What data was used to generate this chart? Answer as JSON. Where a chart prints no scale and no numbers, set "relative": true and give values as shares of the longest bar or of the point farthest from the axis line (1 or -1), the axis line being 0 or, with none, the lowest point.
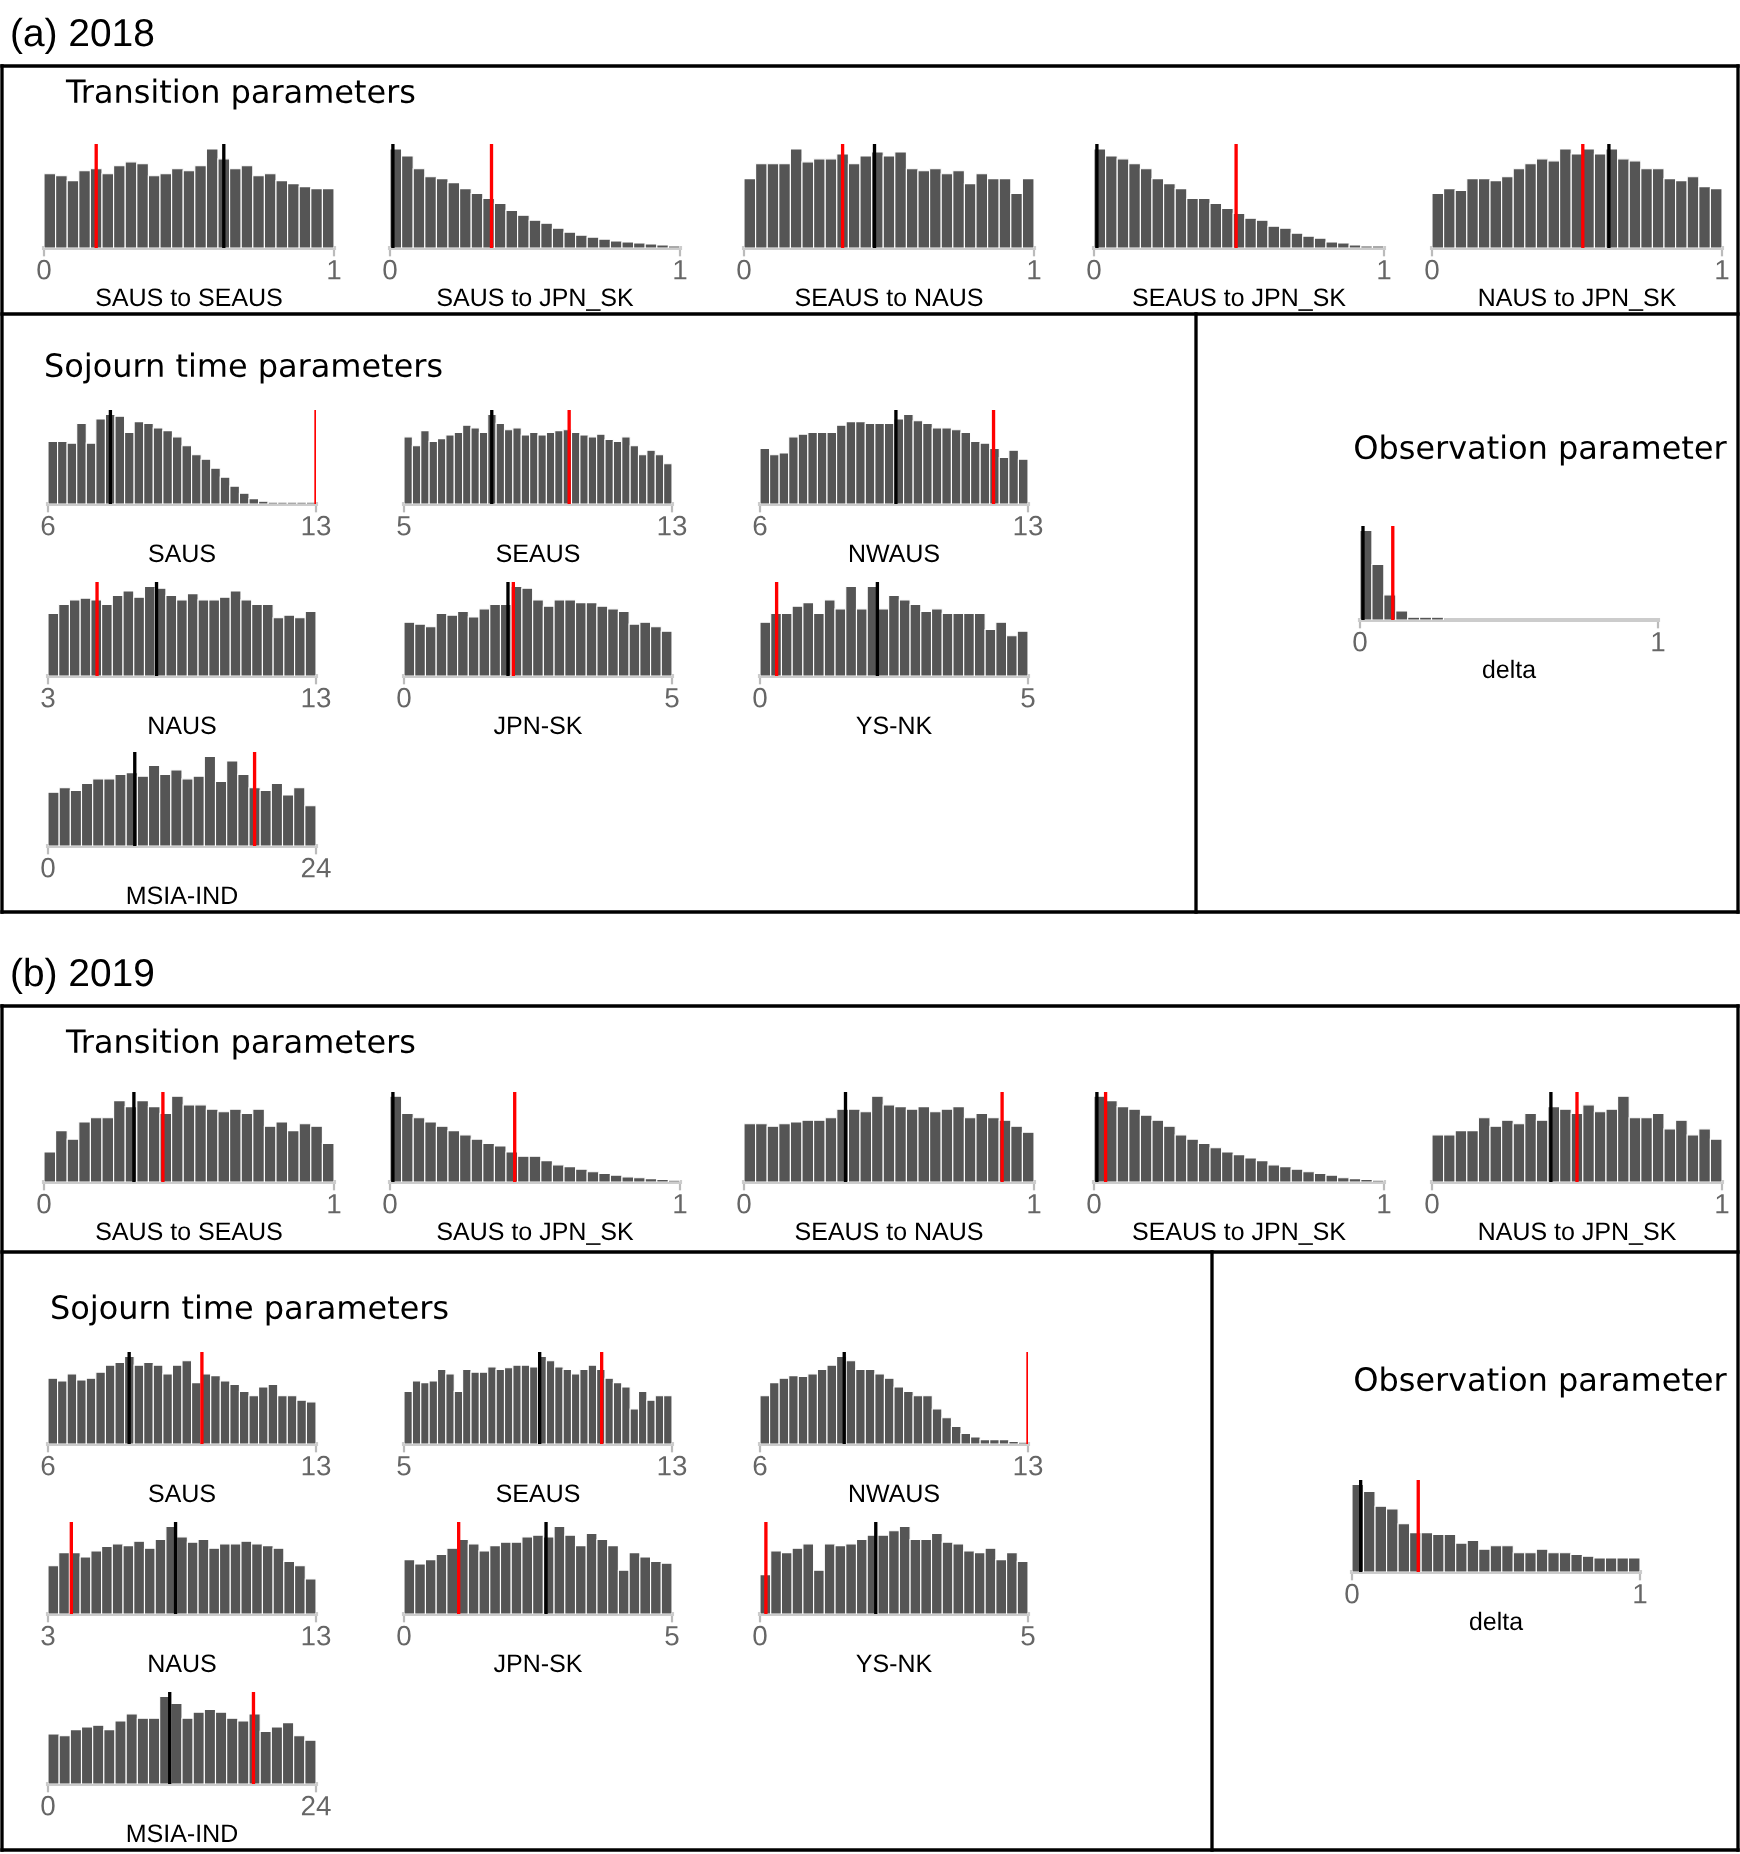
{
  "chart_data": [
    {
      "type": "bar",
      "relative": true,
      "title": "(a) 2018",
      "subtitle": "Transition parameters",
      "xlabel": "SAUS to SEAUS",
      "color": "#555555",
      "xlim": [
        0,
        1
      ],
      "xticks": [
        0,
        1
      ],
      "x": [
        0.02,
        0.06,
        0.1,
        0.14,
        0.18,
        0.22,
        0.26,
        0.3,
        0.34,
        0.38,
        0.42,
        0.46,
        0.5,
        0.54,
        0.58,
        0.62,
        0.66,
        0.7,
        0.74,
        0.78,
        0.82,
        0.86,
        0.9,
        0.94,
        0.98
      ],
      "values": [
        0.75,
        0.73,
        0.68,
        0.78,
        0.8,
        0.75,
        0.83,
        0.87,
        0.85,
        0.73,
        0.75,
        0.8,
        0.78,
        0.83,
        1,
        0.9,
        0.8,
        0.83,
        0.73,
        0.75,
        0.68,
        0.65,
        0.62,
        0.6,
        0.6
      ],
      "ref_lines": [
        {
          "axis": "x",
          "value": 0.18,
          "color": "#ff0000"
        },
        {
          "axis": "x",
          "value": 0.62,
          "color": "#000000"
        }
      ]
    },
    {
      "type": "bar",
      "relative": true,
      "xlabel": "SAUS to JPN_SK",
      "color": "#555555",
      "xlim": [
        0,
        1
      ],
      "xticks": [
        0,
        1
      ],
      "x": [
        0.02,
        0.06,
        0.1,
        0.14,
        0.18,
        0.22,
        0.26,
        0.3,
        0.34,
        0.38,
        0.42,
        0.46,
        0.5,
        0.54,
        0.58,
        0.62,
        0.66,
        0.7,
        0.74,
        0.78,
        0.82,
        0.86,
        0.9,
        0.94,
        0.98
      ],
      "values": [
        1,
        0.93,
        0.8,
        0.72,
        0.7,
        0.66,
        0.6,
        0.55,
        0.5,
        0.45,
        0.38,
        0.33,
        0.28,
        0.25,
        0.2,
        0.16,
        0.13,
        0.11,
        0.09,
        0.07,
        0.06,
        0.05,
        0.04,
        0.03,
        0.02
      ],
      "ref_lines": [
        {
          "axis": "x",
          "value": 0.01,
          "color": "#000000"
        },
        {
          "axis": "x",
          "value": 0.35,
          "color": "#ff0000"
        }
      ]
    },
    {
      "type": "bar",
      "relative": true,
      "xlabel": "SEAUS to NAUS",
      "color": "#555555",
      "xlim": [
        0,
        1
      ],
      "xticks": [
        0,
        1
      ],
      "x": [
        0.02,
        0.06,
        0.1,
        0.14,
        0.18,
        0.22,
        0.26,
        0.3,
        0.34,
        0.38,
        0.42,
        0.46,
        0.5,
        0.54,
        0.58,
        0.62,
        0.66,
        0.7,
        0.74,
        0.78,
        0.82,
        0.86,
        0.9,
        0.94,
        0.98
      ],
      "values": [
        0.7,
        0.85,
        0.85,
        0.85,
        1,
        0.87,
        0.9,
        0.9,
        0.95,
        0.85,
        0.93,
        0.97,
        0.93,
        0.97,
        0.8,
        0.78,
        0.8,
        0.75,
        0.78,
        0.65,
        0.75,
        0.7,
        0.7,
        0.55,
        0.7
      ],
      "ref_lines": [
        {
          "axis": "x",
          "value": 0.34,
          "color": "#ff0000"
        },
        {
          "axis": "x",
          "value": 0.45,
          "color": "#000000"
        }
      ]
    },
    {
      "type": "bar",
      "relative": true,
      "xlabel": "SEAUS to JPN_SK",
      "color": "#555555",
      "xlim": [
        0,
        1
      ],
      "xticks": [
        0,
        1
      ],
      "x": [
        0.02,
        0.06,
        0.1,
        0.14,
        0.18,
        0.22,
        0.26,
        0.3,
        0.34,
        0.38,
        0.42,
        0.46,
        0.5,
        0.54,
        0.58,
        0.62,
        0.66,
        0.7,
        0.74,
        0.78,
        0.82,
        0.86,
        0.9,
        0.94,
        0.98
      ],
      "values": [
        1,
        0.93,
        0.9,
        0.85,
        0.8,
        0.7,
        0.65,
        0.6,
        0.5,
        0.5,
        0.45,
        0.4,
        0.35,
        0.3,
        0.28,
        0.22,
        0.2,
        0.15,
        0.12,
        0.1,
        0.06,
        0.05,
        0.03,
        0.02,
        0.02
      ],
      "ref_lines": [
        {
          "axis": "x",
          "value": 0.01,
          "color": "#000000"
        },
        {
          "axis": "x",
          "value": 0.49,
          "color": "#ff0000"
        }
      ]
    },
    {
      "type": "bar",
      "relative": true,
      "xlabel": "NAUS to JPN_SK",
      "color": "#555555",
      "xlim": [
        0,
        1
      ],
      "xticks": [
        0,
        1
      ],
      "x": [
        0.02,
        0.06,
        0.1,
        0.14,
        0.18,
        0.22,
        0.26,
        0.3,
        0.34,
        0.38,
        0.42,
        0.46,
        0.5,
        0.54,
        0.58,
        0.62,
        0.66,
        0.7,
        0.74,
        0.78,
        0.82,
        0.86,
        0.9,
        0.94,
        0.98
      ],
      "values": [
        0.55,
        0.6,
        0.58,
        0.7,
        0.7,
        0.68,
        0.72,
        0.8,
        0.85,
        0.9,
        0.88,
        1,
        0.95,
        1,
        0.95,
        1,
        0.9,
        0.88,
        0.8,
        0.8,
        0.7,
        0.68,
        0.72,
        0.62,
        0.6
      ],
      "ref_lines": [
        {
          "axis": "x",
          "value": 0.52,
          "color": "#ff0000"
        },
        {
          "axis": "x",
          "value": 0.61,
          "color": "#000000"
        }
      ]
    },
    {
      "type": "bar",
      "relative": true,
      "subtitle": "Sojourn time parameters",
      "xlabel": "SAUS",
      "color": "#555555",
      "xlim": [
        6,
        13
      ],
      "xticks": [
        6,
        13
      ],
      "x": [
        6.125,
        6.375,
        6.625,
        6.875,
        7.125,
        7.375,
        7.625,
        7.875,
        8.125,
        8.375,
        8.625,
        8.875,
        9.125,
        9.375,
        9.625,
        9.875,
        10.125,
        10.375,
        10.625,
        10.875,
        11.125,
        11.375,
        11.625,
        11.875,
        12.125,
        12.375,
        12.625,
        12.875
      ],
      "values": [
        0.7,
        0.7,
        0.68,
        0.9,
        0.68,
        0.95,
        1,
        0.98,
        0.8,
        0.92,
        0.9,
        0.85,
        0.82,
        0.75,
        0.65,
        0.55,
        0.5,
        0.4,
        0.3,
        0.2,
        0.12,
        0.06,
        0.03,
        0.02,
        0.02,
        0.02,
        0.02,
        0.02
      ],
      "ref_lines": [
        {
          "axis": "x",
          "value": 7.63,
          "color": "#000000"
        },
        {
          "axis": "x",
          "value": 13,
          "color": "#ff0000"
        }
      ]
    },
    {
      "type": "bar",
      "relative": true,
      "xlabel": "SEAUS",
      "color": "#555555",
      "xlim": [
        5,
        13
      ],
      "xticks": [
        5,
        13
      ],
      "x": [
        5.125,
        5.375,
        5.625,
        5.875,
        6.125,
        6.375,
        6.625,
        6.875,
        7.125,
        7.375,
        7.625,
        7.875,
        8.125,
        8.375,
        8.625,
        8.875,
        9.125,
        9.375,
        9.625,
        9.875,
        10.125,
        10.375,
        10.625,
        10.875,
        11.125,
        11.375,
        11.625,
        11.875,
        12.125,
        12.375,
        12.625,
        12.875
      ],
      "values": [
        0.75,
        0.65,
        0.82,
        0.7,
        0.73,
        0.77,
        0.8,
        0.88,
        0.85,
        0.8,
        1,
        0.9,
        0.83,
        0.85,
        0.77,
        0.8,
        0.77,
        0.8,
        0.82,
        0.83,
        0.8,
        0.77,
        0.75,
        0.78,
        0.72,
        0.7,
        0.75,
        0.65,
        0.55,
        0.6,
        0.55,
        0.45
      ],
      "ref_lines": [
        {
          "axis": "x",
          "value": 7.62,
          "color": "#000000"
        },
        {
          "axis": "x",
          "value": 9.93,
          "color": "#ff0000"
        }
      ]
    },
    {
      "type": "bar",
      "relative": true,
      "xlabel": "NWAUS",
      "color": "#555555",
      "xlim": [
        6,
        13
      ],
      "xticks": [
        6,
        13
      ],
      "x": [
        6.125,
        6.375,
        6.625,
        6.875,
        7.125,
        7.375,
        7.625,
        7.875,
        8.125,
        8.375,
        8.625,
        8.875,
        9.125,
        9.375,
        9.625,
        9.875,
        10.125,
        10.375,
        10.625,
        10.875,
        11.125,
        11.375,
        11.625,
        11.875,
        12.125,
        12.375,
        12.625,
        12.875
      ],
      "values": [
        0.62,
        0.55,
        0.57,
        0.75,
        0.78,
        0.8,
        0.8,
        0.8,
        0.88,
        0.92,
        0.92,
        0.9,
        0.9,
        0.9,
        0.95,
        1,
        0.93,
        0.9,
        0.85,
        0.85,
        0.83,
        0.8,
        0.7,
        0.68,
        0.62,
        0.52,
        0.6,
        0.5
      ],
      "ref_lines": [
        {
          "axis": "x",
          "value": 9.55,
          "color": "#000000"
        },
        {
          "axis": "x",
          "value": 12.1,
          "color": "#ff0000"
        }
      ]
    },
    {
      "type": "bar",
      "relative": true,
      "xlabel": "NAUS",
      "color": "#555555",
      "xlim": [
        3,
        13
      ],
      "xticks": [
        3,
        13
      ],
      "x": [
        3.2,
        3.6,
        4,
        4.4,
        4.8,
        5.2,
        5.6,
        6,
        6.4,
        6.8,
        7.2,
        7.6,
        8,
        8.4,
        8.8,
        9.2,
        9.6,
        10,
        10.4,
        10.8,
        11.2,
        11.6,
        12,
        12.4,
        12.8
      ],
      "values": [
        0.7,
        0.8,
        0.85,
        0.87,
        0.85,
        0.8,
        0.9,
        0.95,
        0.88,
        1,
        0.98,
        0.9,
        0.85,
        0.92,
        0.85,
        0.85,
        0.88,
        0.95,
        0.85,
        0.8,
        0.8,
        0.65,
        0.68,
        0.65,
        0.72
      ],
      "ref_lines": [
        {
          "axis": "x",
          "value": 4.83,
          "color": "#ff0000"
        },
        {
          "axis": "x",
          "value": 7.05,
          "color": "#000000"
        }
      ]
    },
    {
      "type": "bar",
      "relative": true,
      "xlabel": "JPN-SK",
      "color": "#555555",
      "xlim": [
        0,
        5
      ],
      "xticks": [
        0,
        5
      ],
      "x": [
        0.1,
        0.3,
        0.5,
        0.7,
        0.9,
        1.1,
        1.3,
        1.5,
        1.7,
        1.9,
        2.1,
        2.3,
        2.5,
        2.7,
        2.9,
        3.1,
        3.3,
        3.5,
        3.7,
        3.9,
        4.1,
        4.3,
        4.5,
        4.7,
        4.9
      ],
      "values": [
        0.6,
        0.58,
        0.55,
        0.7,
        0.68,
        0.72,
        0.66,
        0.75,
        0.8,
        0.8,
        1,
        0.98,
        0.85,
        0.78,
        0.85,
        0.85,
        0.82,
        0.82,
        0.78,
        0.75,
        0.72,
        0.58,
        0.6,
        0.55,
        0.5
      ],
      "ref_lines": [
        {
          "axis": "x",
          "value": 1.94,
          "color": "#000000"
        },
        {
          "axis": "x",
          "value": 2.04,
          "color": "#ff0000"
        }
      ]
    },
    {
      "type": "bar",
      "relative": true,
      "xlabel": "YS-NK",
      "color": "#555555",
      "xlim": [
        0,
        5
      ],
      "xticks": [
        0,
        5
      ],
      "x": [
        0.1,
        0.3,
        0.5,
        0.7,
        0.9,
        1.1,
        1.3,
        1.5,
        1.7,
        1.9,
        2.1,
        2.3,
        2.5,
        2.7,
        2.9,
        3.1,
        3.3,
        3.5,
        3.7,
        3.9,
        4.1,
        4.3,
        4.5,
        4.7,
        4.9
      ],
      "values": [
        0.6,
        0.7,
        0.7,
        0.78,
        0.82,
        0.7,
        0.85,
        0.75,
        1,
        0.75,
        1,
        0.75,
        0.9,
        0.85,
        0.8,
        0.72,
        0.75,
        0.7,
        0.7,
        0.7,
        0.7,
        0.52,
        0.6,
        0.45,
        0.5
      ],
      "ref_lines": [
        {
          "axis": "x",
          "value": 0.31,
          "color": "#ff0000"
        },
        {
          "axis": "x",
          "value": 2.19,
          "color": "#000000"
        }
      ]
    },
    {
      "type": "bar",
      "relative": true,
      "xlabel": "MSIA-IND",
      "color": "#555555",
      "xlim": [
        0,
        24
      ],
      "xticks": [
        0,
        24
      ],
      "x": [
        0.5,
        1.5,
        2.5,
        3.5,
        4.5,
        5.5,
        6.5,
        7.5,
        8.5,
        9.5,
        10.5,
        11.5,
        12.5,
        13.5,
        14.5,
        15.5,
        16.5,
        17.5,
        18.5,
        19.5,
        20.5,
        21.5,
        22.5,
        23.5
      ],
      "values": [
        0.6,
        0.65,
        0.62,
        0.7,
        0.75,
        0.75,
        0.8,
        0.82,
        0.78,
        0.9,
        0.8,
        0.85,
        0.75,
        0.78,
        1,
        0.72,
        0.95,
        0.8,
        0.65,
        0.62,
        0.7,
        0.57,
        0.65,
        0.45
      ],
      "ref_lines": [
        {
          "axis": "x",
          "value": 7.77,
          "color": "#000000"
        },
        {
          "axis": "x",
          "value": 18.5,
          "color": "#ff0000"
        }
      ]
    },
    {
      "type": "bar",
      "relative": true,
      "subtitle": "Observation parameter",
      "xlabel": "delta",
      "color": "#555555",
      "xlim": [
        0,
        1
      ],
      "xticks": [
        0,
        1
      ],
      "x": [
        0.02,
        0.06,
        0.1,
        0.14,
        0.18,
        0.22,
        0.26
      ],
      "values": [
        1,
        0.62,
        0.28,
        0.1,
        0.03,
        0.03,
        0.03
      ],
      "ref_lines": [
        {
          "axis": "x",
          "value": 0.01,
          "color": "#000000"
        },
        {
          "axis": "x",
          "value": 0.11,
          "color": "#ff0000"
        }
      ]
    },
    {
      "type": "bar",
      "relative": true,
      "title": "(b) 2019",
      "subtitle": "Transition parameters",
      "xlabel": "SAUS to SEAUS",
      "color": "#555555",
      "xlim": [
        0,
        1
      ],
      "xticks": [
        0,
        1
      ],
      "x": [
        0.02,
        0.06,
        0.1,
        0.14,
        0.18,
        0.22,
        0.26,
        0.3,
        0.34,
        0.38,
        0.42,
        0.46,
        0.5,
        0.54,
        0.58,
        0.62,
        0.66,
        0.7,
        0.74,
        0.78,
        0.82,
        0.86,
        0.9,
        0.94,
        0.98
      ],
      "values": [
        0.35,
        0.6,
        0.5,
        0.7,
        0.75,
        0.75,
        0.95,
        0.88,
        0.95,
        0.88,
        0.8,
        1,
        0.9,
        0.9,
        0.85,
        0.82,
        0.85,
        0.8,
        0.85,
        0.65,
        0.7,
        0.6,
        0.68,
        0.65,
        0.45
      ],
      "ref_lines": [
        {
          "axis": "x",
          "value": 0.31,
          "color": "#000000"
        },
        {
          "axis": "x",
          "value": 0.41,
          "color": "#ff0000"
        }
      ]
    },
    {
      "type": "bar",
      "relative": true,
      "xlabel": "SAUS to JPN_SK",
      "color": "#555555",
      "xlim": [
        0,
        1
      ],
      "xticks": [
        0,
        1
      ],
      "x": [
        0.02,
        0.06,
        0.1,
        0.14,
        0.18,
        0.22,
        0.26,
        0.3,
        0.34,
        0.38,
        0.42,
        0.46,
        0.5,
        0.54,
        0.58,
        0.62,
        0.66,
        0.7,
        0.74,
        0.78,
        0.82,
        0.86,
        0.9,
        0.94,
        0.98
      ],
      "values": [
        1,
        0.8,
        0.75,
        0.7,
        0.65,
        0.6,
        0.55,
        0.5,
        0.45,
        0.42,
        0.35,
        0.3,
        0.3,
        0.25,
        0.2,
        0.18,
        0.15,
        0.12,
        0.1,
        0.08,
        0.06,
        0.05,
        0.04,
        0.03,
        0.02
      ],
      "ref_lines": [
        {
          "axis": "x",
          "value": 0.01,
          "color": "#000000"
        },
        {
          "axis": "x",
          "value": 0.43,
          "color": "#ff0000"
        }
      ]
    },
    {
      "type": "bar",
      "relative": true,
      "xlabel": "SEAUS to NAUS",
      "color": "#555555",
      "xlim": [
        0,
        1
      ],
      "xticks": [
        0,
        1
      ],
      "x": [
        0.02,
        0.06,
        0.1,
        0.14,
        0.18,
        0.22,
        0.26,
        0.3,
        0.34,
        0.38,
        0.42,
        0.46,
        0.5,
        0.54,
        0.58,
        0.62,
        0.66,
        0.7,
        0.74,
        0.78,
        0.82,
        0.86,
        0.9,
        0.94,
        0.98
      ],
      "values": [
        0.68,
        0.68,
        0.65,
        0.68,
        0.7,
        0.72,
        0.72,
        0.75,
        0.85,
        0.85,
        0.82,
        1,
        0.9,
        0.88,
        0.85,
        0.88,
        0.82,
        0.85,
        0.88,
        0.75,
        0.8,
        0.75,
        0.72,
        0.65,
        0.58
      ],
      "ref_lines": [
        {
          "axis": "x",
          "value": 0.35,
          "color": "#000000"
        },
        {
          "axis": "x",
          "value": 0.89,
          "color": "#ff0000"
        }
      ]
    },
    {
      "type": "bar",
      "relative": true,
      "xlabel": "SEAUS to JPN_SK",
      "color": "#555555",
      "xlim": [
        0,
        1
      ],
      "xticks": [
        0,
        1
      ],
      "x": [
        0.02,
        0.06,
        0.1,
        0.14,
        0.18,
        0.22,
        0.26,
        0.3,
        0.34,
        0.38,
        0.42,
        0.46,
        0.5,
        0.54,
        0.58,
        0.62,
        0.66,
        0.7,
        0.74,
        0.78,
        0.82,
        0.86,
        0.9,
        0.94,
        0.98
      ],
      "values": [
        1,
        0.95,
        0.88,
        0.85,
        0.78,
        0.72,
        0.65,
        0.55,
        0.5,
        0.45,
        0.4,
        0.35,
        0.32,
        0.28,
        0.25,
        0.2,
        0.18,
        0.15,
        0.12,
        0.1,
        0.08,
        0.05,
        0.04,
        0.03,
        0.02
      ],
      "ref_lines": [
        {
          "axis": "x",
          "value": 0.01,
          "color": "#000000"
        },
        {
          "axis": "x",
          "value": 0.04,
          "color": "#ff0000"
        }
      ]
    },
    {
      "type": "bar",
      "relative": true,
      "xlabel": "NAUS to JPN_SK",
      "color": "#555555",
      "xlim": [
        0,
        1
      ],
      "xticks": [
        0,
        1
      ],
      "x": [
        0.02,
        0.06,
        0.1,
        0.14,
        0.18,
        0.22,
        0.26,
        0.3,
        0.34,
        0.38,
        0.42,
        0.46,
        0.5,
        0.54,
        0.58,
        0.62,
        0.66,
        0.7,
        0.74,
        0.78,
        0.82,
        0.86,
        0.9,
        0.94,
        0.98
      ],
      "values": [
        0.55,
        0.55,
        0.6,
        0.6,
        0.75,
        0.65,
        0.72,
        0.68,
        0.8,
        0.72,
        0.88,
        0.85,
        0.8,
        0.9,
        0.82,
        0.85,
        1,
        0.75,
        0.75,
        0.8,
        0.62,
        0.72,
        0.55,
        0.62,
        0.5
      ],
      "ref_lines": [
        {
          "axis": "x",
          "value": 0.41,
          "color": "#000000"
        },
        {
          "axis": "x",
          "value": 0.5,
          "color": "#ff0000"
        }
      ]
    },
    {
      "type": "bar",
      "relative": true,
      "subtitle": "Sojourn time parameters",
      "xlabel": "SAUS",
      "color": "#555555",
      "xlim": [
        6,
        13
      ],
      "xticks": [
        6,
        13
      ],
      "x": [
        6.125,
        6.375,
        6.625,
        6.875,
        7.125,
        7.375,
        7.625,
        7.875,
        8.125,
        8.375,
        8.625,
        8.875,
        9.125,
        9.375,
        9.625,
        9.875,
        10.125,
        10.375,
        10.625,
        10.875,
        11.125,
        11.375,
        11.625,
        11.875,
        12.125,
        12.375,
        12.625,
        12.875
      ],
      "values": [
        0.75,
        0.72,
        0.8,
        0.73,
        0.75,
        0.82,
        0.9,
        0.93,
        1,
        0.9,
        0.93,
        0.9,
        0.8,
        0.9,
        0.95,
        0.7,
        0.8,
        0.78,
        0.72,
        0.68,
        0.6,
        0.55,
        0.65,
        0.68,
        0.55,
        0.55,
        0.5,
        0.48
      ],
      "ref_lines": [
        {
          "axis": "x",
          "value": 8.12,
          "color": "#000000"
        },
        {
          "axis": "x",
          "value": 10.02,
          "color": "#ff0000"
        }
      ]
    },
    {
      "type": "bar",
      "relative": true,
      "xlabel": "SEAUS",
      "color": "#555555",
      "xlim": [
        5,
        13
      ],
      "xticks": [
        5,
        13
      ],
      "x": [
        5.125,
        5.375,
        5.625,
        5.875,
        6.125,
        6.375,
        6.625,
        6.875,
        7.125,
        7.375,
        7.625,
        7.875,
        8.125,
        8.375,
        8.625,
        8.875,
        9.125,
        9.375,
        9.625,
        9.875,
        10.125,
        10.375,
        10.625,
        10.875,
        11.125,
        11.375,
        11.625,
        11.875,
        12.125,
        12.375,
        12.625,
        12.875
      ],
      "values": [
        0.6,
        0.72,
        0.7,
        0.72,
        0.85,
        0.8,
        0.6,
        0.85,
        0.82,
        0.82,
        0.88,
        0.85,
        0.87,
        0.9,
        0.9,
        0.88,
        1,
        0.95,
        0.88,
        0.85,
        0.8,
        0.85,
        0.9,
        0.85,
        0.75,
        0.7,
        0.65,
        0.4,
        0.6,
        0.5,
        0.55,
        0.55
      ],
      "ref_lines": [
        {
          "axis": "x",
          "value": 9.05,
          "color": "#000000"
        },
        {
          "axis": "x",
          "value": 10.9,
          "color": "#ff0000"
        }
      ]
    },
    {
      "type": "bar",
      "relative": true,
      "xlabel": "NWAUS",
      "color": "#555555",
      "xlim": [
        6,
        13
      ],
      "xticks": [
        6,
        13
      ],
      "x": [
        6.125,
        6.375,
        6.625,
        6.875,
        7.125,
        7.375,
        7.625,
        7.875,
        8.125,
        8.375,
        8.625,
        8.875,
        9.125,
        9.375,
        9.625,
        9.875,
        10.125,
        10.375,
        10.625,
        10.875,
        11.125,
        11.375,
        11.625,
        11.875,
        12.125,
        12.375,
        12.625,
        12.875
      ],
      "values": [
        0.55,
        0.7,
        0.75,
        0.78,
        0.77,
        0.8,
        0.85,
        0.9,
        1,
        0.95,
        0.85,
        0.85,
        0.8,
        0.75,
        0.65,
        0.6,
        0.55,
        0.55,
        0.4,
        0.3,
        0.2,
        0.12,
        0.08,
        0.05,
        0.05,
        0.05,
        0.03,
        0.02
      ],
      "ref_lines": [
        {
          "axis": "x",
          "value": 8.2,
          "color": "#000000"
        },
        {
          "axis": "x",
          "value": 13,
          "color": "#ff0000"
        }
      ]
    },
    {
      "type": "bar",
      "relative": true,
      "xlabel": "NAUS",
      "color": "#555555",
      "xlim": [
        3,
        13
      ],
      "xticks": [
        3,
        13
      ],
      "x": [
        3.2,
        3.6,
        4,
        4.4,
        4.8,
        5.2,
        5.6,
        6,
        6.4,
        6.8,
        7.2,
        7.6,
        8,
        8.4,
        8.8,
        9.2,
        9.6,
        10,
        10.4,
        10.8,
        11.2,
        11.6,
        12,
        12.4,
        12.8
      ],
      "values": [
        0.55,
        0.7,
        0.7,
        0.65,
        0.72,
        0.77,
        0.8,
        0.78,
        0.83,
        0.75,
        0.85,
        1,
        0.88,
        0.82,
        0.85,
        0.75,
        0.8,
        0.8,
        0.83,
        0.8,
        0.78,
        0.75,
        0.6,
        0.55,
        0.4
      ],
      "ref_lines": [
        {
          "axis": "x",
          "value": 3.87,
          "color": "#ff0000"
        },
        {
          "axis": "x",
          "value": 7.76,
          "color": "#000000"
        }
      ]
    },
    {
      "type": "bar",
      "relative": true,
      "xlabel": "JPN-SK",
      "color": "#555555",
      "xlim": [
        0,
        5
      ],
      "xticks": [
        0,
        5
      ],
      "x": [
        0.1,
        0.3,
        0.5,
        0.7,
        0.9,
        1.1,
        1.3,
        1.5,
        1.7,
        1.9,
        2.1,
        2.3,
        2.5,
        2.7,
        2.9,
        3.1,
        3.3,
        3.5,
        3.7,
        3.9,
        4.1,
        4.3,
        4.5,
        4.7,
        4.9
      ],
      "values": [
        0.62,
        0.57,
        0.62,
        0.68,
        0.75,
        0.85,
        0.8,
        0.72,
        0.78,
        0.82,
        0.82,
        0.88,
        0.9,
        0.88,
        1,
        0.9,
        0.78,
        0.92,
        0.85,
        0.78,
        0.5,
        0.7,
        0.65,
        0.6,
        0.58
      ],
      "ref_lines": [
        {
          "axis": "x",
          "value": 1.02,
          "color": "#ff0000"
        },
        {
          "axis": "x",
          "value": 2.65,
          "color": "#000000"
        }
      ]
    },
    {
      "type": "bar",
      "relative": true,
      "xlabel": "YS-NK",
      "color": "#555555",
      "xlim": [
        0,
        5
      ],
      "xticks": [
        0,
        5
      ],
      "x": [
        0.1,
        0.3,
        0.5,
        0.7,
        0.9,
        1.1,
        1.3,
        1.5,
        1.7,
        1.9,
        2.1,
        2.3,
        2.5,
        2.7,
        2.9,
        3.1,
        3.3,
        3.5,
        3.7,
        3.9,
        4.1,
        4.3,
        4.5,
        4.7,
        4.9
      ],
      "values": [
        0.45,
        0.72,
        0.7,
        0.75,
        0.8,
        0.5,
        0.8,
        0.78,
        0.8,
        0.85,
        0.9,
        0.9,
        0.95,
        1,
        0.85,
        0.85,
        0.92,
        0.82,
        0.8,
        0.72,
        0.7,
        0.75,
        0.62,
        0.7,
        0.6
      ],
      "ref_lines": [
        {
          "axis": "x",
          "value": 0.11,
          "color": "#ff0000"
        },
        {
          "axis": "x",
          "value": 2.16,
          "color": "#000000"
        }
      ]
    },
    {
      "type": "bar",
      "relative": true,
      "xlabel": "MSIA-IND",
      "color": "#555555",
      "xlim": [
        0,
        24
      ],
      "xticks": [
        0,
        24
      ],
      "x": [
        0.5,
        1.5,
        2.5,
        3.5,
        4.5,
        5.5,
        6.5,
        7.5,
        8.5,
        9.5,
        10.5,
        11.5,
        12.5,
        13.5,
        14.5,
        15.5,
        16.5,
        17.5,
        18.5,
        19.5,
        20.5,
        21.5,
        22.5,
        23.5
      ],
      "values": [
        0.57,
        0.55,
        0.62,
        0.65,
        0.67,
        0.62,
        0.72,
        0.8,
        0.75,
        0.75,
        1,
        0.92,
        0.75,
        0.82,
        0.85,
        0.82,
        0.75,
        0.72,
        0.8,
        0.6,
        0.65,
        0.7,
        0.55,
        0.5
      ],
      "ref_lines": [
        {
          "axis": "x",
          "value": 10.9,
          "color": "#000000"
        },
        {
          "axis": "x",
          "value": 18.4,
          "color": "#ff0000"
        }
      ]
    },
    {
      "type": "bar",
      "relative": true,
      "subtitle": "Observation parameter",
      "xlabel": "delta",
      "color": "#555555",
      "xlim": [
        0,
        1
      ],
      "xticks": [
        0,
        1
      ],
      "x": [
        0.02,
        0.06,
        0.1,
        0.14,
        0.18,
        0.22,
        0.26,
        0.3,
        0.34,
        0.38,
        0.42,
        0.46,
        0.5,
        0.54,
        0.58,
        0.62,
        0.66,
        0.7,
        0.74,
        0.78,
        0.82,
        0.86,
        0.9,
        0.94,
        0.98
      ],
      "values": [
        1,
        0.92,
        0.75,
        0.72,
        0.55,
        0.45,
        0.45,
        0.43,
        0.43,
        0.33,
        0.36,
        0.26,
        0.3,
        0.3,
        0.22,
        0.22,
        0.26,
        0.22,
        0.22,
        0.2,
        0.18,
        0.16,
        0.16,
        0.16,
        0.16
      ],
      "ref_lines": [
        {
          "axis": "x",
          "value": 0.03,
          "color": "#000000"
        },
        {
          "axis": "x",
          "value": 0.23,
          "color": "#ff0000"
        }
      ]
    }
  ]
}
